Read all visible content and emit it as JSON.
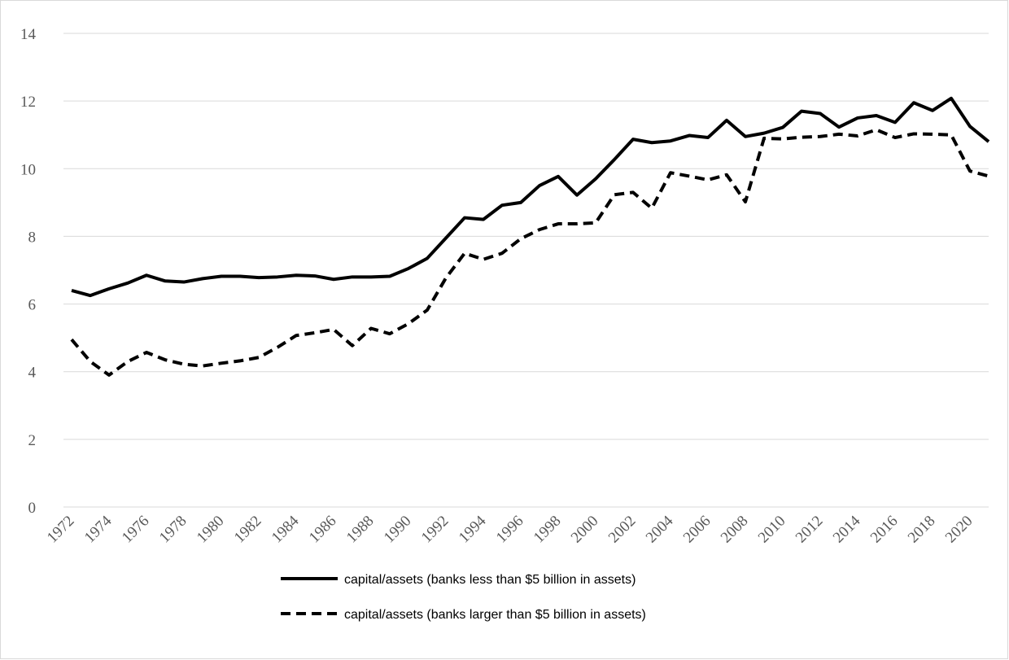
{
  "chart_data": {
    "type": "line",
    "categories": [
      "1972",
      null,
      "1974",
      null,
      "1976",
      null,
      "1978",
      null,
      "1980",
      null,
      "1982",
      null,
      "1984",
      null,
      "1986",
      null,
      "1988",
      null,
      "1990",
      null,
      "1992",
      null,
      "1994",
      null,
      "1996",
      null,
      "1998",
      null,
      "2000",
      null,
      "2002",
      null,
      "2004",
      null,
      "2006",
      null,
      "2008",
      null,
      "2010",
      null,
      "2012",
      null,
      "2014",
      null,
      "2016",
      null,
      "2018",
      null,
      "2020",
      null
    ],
    "series": [
      {
        "name": "capital/assets (banks less than $5 billion in assets)",
        "color": "#000000",
        "line_style": "solid",
        "values": [
          6.4,
          6.25,
          6.45,
          6.62,
          6.85,
          6.68,
          6.65,
          6.75,
          6.82,
          6.82,
          6.78,
          6.8,
          6.85,
          6.83,
          6.73,
          6.8,
          6.8,
          6.82,
          7.05,
          7.35,
          7.95,
          8.55,
          8.5,
          8.92,
          9.0,
          9.5,
          9.77,
          9.22,
          9.7,
          10.27,
          10.87,
          10.77,
          10.82,
          10.98,
          10.92,
          11.43,
          10.95,
          11.05,
          11.22,
          11.7,
          11.63,
          11.23,
          11.5,
          11.57,
          11.37,
          11.95,
          11.72,
          12.08,
          11.25,
          10.8
        ]
      },
      {
        "name": "capital/assets (banks larger than $5 billion in assets)",
        "color": "#000000",
        "line_style": "dashed",
        "values": [
          4.95,
          4.3,
          3.9,
          4.3,
          4.57,
          4.35,
          4.22,
          4.17,
          4.25,
          4.32,
          4.42,
          4.72,
          5.07,
          5.15,
          5.25,
          4.77,
          5.28,
          5.12,
          5.42,
          5.82,
          6.77,
          7.5,
          7.32,
          7.5,
          7.93,
          8.2,
          8.37,
          8.37,
          8.4,
          9.23,
          9.3,
          8.83,
          9.88,
          9.78,
          9.67,
          9.82,
          9.02,
          10.9,
          10.88,
          10.93,
          10.95,
          11.02,
          10.97,
          11.15,
          10.92,
          11.03,
          11.02,
          11.0,
          9.93,
          9.78
        ]
      }
    ],
    "ylim": [
      0,
      14
    ],
    "yticks": [
      0,
      2,
      4,
      6,
      8,
      10,
      12,
      14
    ],
    "grid": true,
    "legend": "bottom"
  }
}
